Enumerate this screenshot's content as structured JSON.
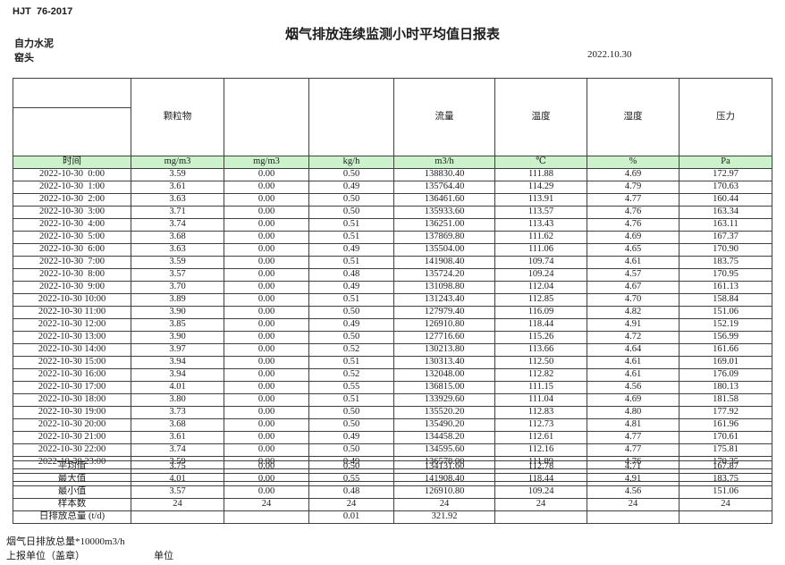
{
  "page": {
    "standard": "HJT  76-2017",
    "title": "烟气排放连续监测小时平均值日报表",
    "company": "自力水泥",
    "monitor_point": "窑头",
    "date": "2022.10.30"
  },
  "table": {
    "group_headers": [
      "",
      "颗粒物",
      "",
      "",
      "流量",
      "温度",
      "湿度",
      "压力"
    ],
    "unit_row": [
      "时间",
      "mg/m3",
      "mg/m3",
      "kg/h",
      "m3/h",
      "℃",
      "%",
      "Pa"
    ],
    "rows": [
      [
        "2022-10-30  0:00",
        "3.59",
        "0.00",
        "0.50",
        "138830.40",
        "111.88",
        "4.69",
        "172.97"
      ],
      [
        "2022-10-30  1:00",
        "3.61",
        "0.00",
        "0.49",
        "135764.40",
        "114.29",
        "4.79",
        "170.63"
      ],
      [
        "2022-10-30  2:00",
        "3.63",
        "0.00",
        "0.50",
        "136461.60",
        "113.91",
        "4.77",
        "160.44"
      ],
      [
        "2022-10-30  3:00",
        "3.71",
        "0.00",
        "0.50",
        "135933.60",
        "113.57",
        "4.76",
        "163.34"
      ],
      [
        "2022-10-30  4:00",
        "3.74",
        "0.00",
        "0.51",
        "136251.00",
        "113.43",
        "4.76",
        "163.11"
      ],
      [
        "2022-10-30  5:00",
        "3.68",
        "0.00",
        "0.51",
        "137869.80",
        "111.62",
        "4.69",
        "167.37"
      ],
      [
        "2022-10-30  6:00",
        "3.63",
        "0.00",
        "0.49",
        "135504.00",
        "111.06",
        "4.65",
        "170.90"
      ],
      [
        "2022-10-30  7:00",
        "3.59",
        "0.00",
        "0.51",
        "141908.40",
        "109.74",
        "4.61",
        "183.75"
      ],
      [
        "2022-10-30  8:00",
        "3.57",
        "0.00",
        "0.48",
        "135724.20",
        "109.24",
        "4.57",
        "170.95"
      ],
      [
        "2022-10-30  9:00",
        "3.70",
        "0.00",
        "0.49",
        "131098.80",
        "112.04",
        "4.67",
        "161.13"
      ],
      [
        "2022-10-30 10:00",
        "3.89",
        "0.00",
        "0.51",
        "131243.40",
        "112.85",
        "4.70",
        "158.84"
      ],
      [
        "2022-10-30 11:00",
        "3.90",
        "0.00",
        "0.50",
        "127979.40",
        "116.09",
        "4.82",
        "151.06"
      ],
      [
        "2022-10-30 12:00",
        "3.85",
        "0.00",
        "0.49",
        "126910.80",
        "118.44",
        "4.91",
        "152.19"
      ],
      [
        "2022-10-30 13:00",
        "3.90",
        "0.00",
        "0.50",
        "127716.60",
        "115.26",
        "4.72",
        "156.99"
      ],
      [
        "2022-10-30 14:00",
        "3.97",
        "0.00",
        "0.52",
        "130213.80",
        "113.66",
        "4.64",
        "161.66"
      ],
      [
        "2022-10-30 15:00",
        "3.94",
        "0.00",
        "0.51",
        "130313.40",
        "112.50",
        "4.61",
        "169.01"
      ],
      [
        "2022-10-30 16:00",
        "3.94",
        "0.00",
        "0.52",
        "132048.00",
        "112.82",
        "4.61",
        "176.09"
      ],
      [
        "2022-10-30 17:00",
        "4.01",
        "0.00",
        "0.55",
        "136815.00",
        "111.15",
        "4.56",
        "180.13"
      ],
      [
        "2022-10-30 18:00",
        "3.80",
        "0.00",
        "0.51",
        "133929.60",
        "111.04",
        "4.69",
        "181.58"
      ],
      [
        "2022-10-30 19:00",
        "3.73",
        "0.00",
        "0.50",
        "135520.20",
        "112.83",
        "4.80",
        "177.92"
      ],
      [
        "2022-10-30 20:00",
        "3.68",
        "0.00",
        "0.50",
        "135490.20",
        "112.73",
        "4.81",
        "161.96"
      ],
      [
        "2022-10-30 21:00",
        "3.61",
        "0.00",
        "0.49",
        "134458.20",
        "112.61",
        "4.77",
        "170.61"
      ],
      [
        "2022-10-30 22:00",
        "3.74",
        "0.00",
        "0.50",
        "134595.60",
        "112.16",
        "4.77",
        "175.81"
      ],
      [
        "2022-10-30 23:00",
        "3.59",
        "0.00",
        "0.49",
        "136578.00",
        "111.89",
        "4.76",
        "170.35"
      ]
    ],
    "summary_rows": [
      [
        "平均值",
        "3.75",
        "0.00",
        "0.50",
        "134131.60",
        "112.78",
        "4.71",
        "167.87"
      ],
      [
        "最大值",
        "4.01",
        "0.00",
        "0.55",
        "141908.40",
        "118.44",
        "4.91",
        "183.75"
      ],
      [
        "最小值",
        "3.57",
        "0.00",
        "0.48",
        "126910.80",
        "109.24",
        "4.56",
        "151.06"
      ],
      [
        "样本数",
        "24",
        "24",
        "24",
        "24",
        "24",
        "24",
        "24"
      ],
      [
        "日排放总量 (t/d)",
        "",
        "",
        "0.01",
        "321.92",
        "",
        "",
        ""
      ]
    ]
  },
  "footer": {
    "note": "烟气日排放总量*10000m3/h",
    "report_unit_label": "上报单位（盖章）",
    "unit_label": "单位"
  },
  "colors": {
    "header_green": "#ccf2cc",
    "border": "#404040"
  }
}
